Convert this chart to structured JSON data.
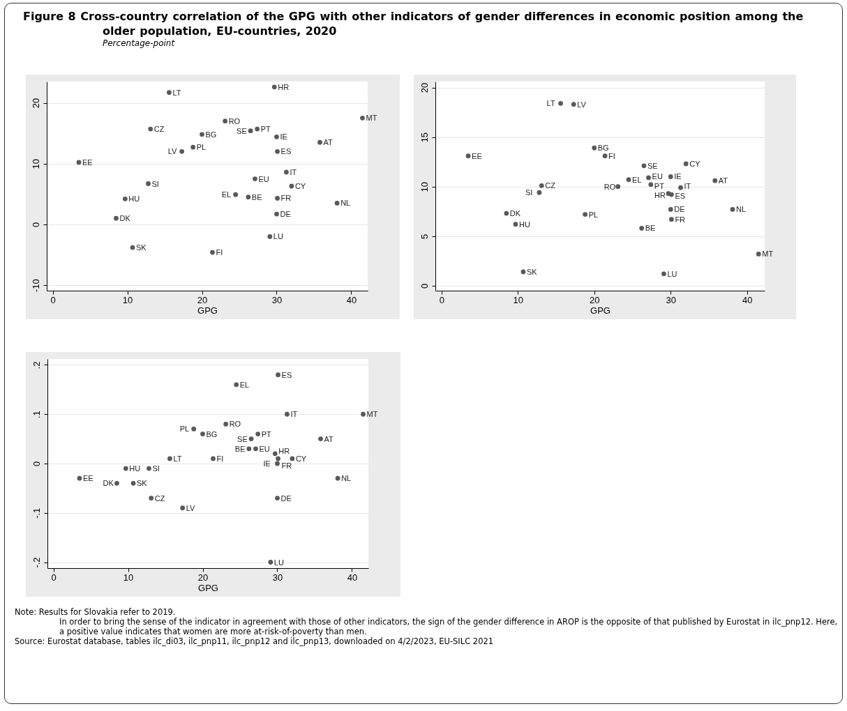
{
  "chart_data": [
    {
      "type": "scatter",
      "title": "Figure 8 Cross-country correlation of the GPG with other indicators of gender differences in economic position among the older population, EU-countries, 2020",
      "subtitle": "Percentage-point",
      "xlabel": "GPG",
      "xlim": [
        -0.8,
        42.2
      ],
      "ylim": [
        -10.9,
        23.5
      ],
      "xticks": [
        0,
        10,
        20,
        30,
        40
      ],
      "yticks": [
        -10,
        0,
        10,
        20
      ],
      "grid": "y",
      "marker": "circle",
      "series": [
        {
          "name": "EE",
          "color": "#595959",
          "x": [
            3.5
          ],
          "values": [
            10.2
          ]
        },
        {
          "name": "DK",
          "color": "#595959",
          "x": [
            8.5
          ],
          "values": [
            1.0
          ]
        },
        {
          "name": "HU",
          "color": "#595959",
          "x": [
            9.7
          ],
          "values": [
            4.2
          ]
        },
        {
          "name": "SK",
          "color": "#595959",
          "x": [
            10.7
          ],
          "values": [
            -3.8
          ]
        },
        {
          "name": "SI",
          "color": "#595959",
          "x": [
            12.8
          ],
          "values": [
            6.7
          ]
        },
        {
          "name": "CZ",
          "color": "#595959",
          "x": [
            13.1
          ],
          "values": [
            15.7
          ]
        },
        {
          "name": "LT",
          "color": "#595959",
          "x": [
            15.6
          ],
          "values": [
            21.7
          ]
        },
        {
          "name": "LV",
          "color": "#595959",
          "x": [
            17.3
          ],
          "values": [
            12.0
          ]
        },
        {
          "name": "PL",
          "color": "#595959",
          "x": [
            18.8
          ],
          "values": [
            12.7
          ]
        },
        {
          "name": "BG",
          "color": "#595959",
          "x": [
            20.0
          ],
          "values": [
            14.8
          ]
        },
        {
          "name": "FI",
          "color": "#595959",
          "x": [
            21.4
          ],
          "values": [
            -4.6
          ]
        },
        {
          "name": "RO",
          "color": "#595959",
          "x": [
            23.1
          ],
          "values": [
            17.0
          ]
        },
        {
          "name": "EL",
          "color": "#595959",
          "x": [
            24.5
          ],
          "values": [
            4.9
          ]
        },
        {
          "name": "BE",
          "color": "#595959",
          "x": [
            26.2
          ],
          "values": [
            4.5
          ]
        },
        {
          "name": "SE",
          "color": "#595959",
          "x": [
            26.5
          ],
          "values": [
            15.4
          ]
        },
        {
          "name": "EU",
          "color": "#595959",
          "x": [
            27.1
          ],
          "values": [
            7.5
          ]
        },
        {
          "name": "PT",
          "color": "#595959",
          "x": [
            27.4
          ],
          "values": [
            15.7
          ]
        },
        {
          "name": "LU",
          "color": "#595959",
          "x": [
            29.1
          ],
          "values": [
            -2.0
          ]
        },
        {
          "name": "HR",
          "color": "#595959",
          "x": [
            29.7
          ],
          "values": [
            22.6
          ]
        },
        {
          "name": "IE",
          "color": "#595959",
          "x": [
            30.0
          ],
          "values": [
            14.4
          ]
        },
        {
          "name": "DE",
          "color": "#595959",
          "x": [
            30.0
          ],
          "values": [
            1.7
          ]
        },
        {
          "name": "ES",
          "color": "#595959",
          "x": [
            30.1
          ],
          "values": [
            12.0
          ]
        },
        {
          "name": "FR",
          "color": "#595959",
          "x": [
            30.1
          ],
          "values": [
            4.3
          ]
        },
        {
          "name": "IT",
          "color": "#595959",
          "x": [
            31.3
          ],
          "values": [
            8.6
          ]
        },
        {
          "name": "CY",
          "color": "#595959",
          "x": [
            32.0
          ],
          "values": [
            6.3
          ]
        },
        {
          "name": "AT",
          "color": "#595959",
          "x": [
            35.8
          ],
          "values": [
            13.5
          ]
        },
        {
          "name": "NL",
          "color": "#595959",
          "x": [
            38.1
          ],
          "values": [
            3.5
          ]
        },
        {
          "name": "MT",
          "color": "#595959",
          "x": [
            41.5
          ],
          "values": [
            17.5
          ]
        }
      ]
    },
    {
      "type": "scatter",
      "xlabel": "GPG",
      "xlim": [
        -0.8,
        42.3
      ],
      "ylim": [
        -0.5,
        20.6
      ],
      "xticks": [
        0,
        10,
        20,
        30,
        40
      ],
      "yticks": [
        0,
        5,
        10,
        15,
        20
      ],
      "grid": "y",
      "marker": "circle",
      "series": [
        {
          "name": "EE",
          "color": "#595959",
          "x": [
            3.5
          ],
          "values": [
            13.1
          ]
        },
        {
          "name": "DK",
          "color": "#595959",
          "x": [
            8.5
          ],
          "values": [
            7.3
          ]
        },
        {
          "name": "HU",
          "color": "#595959",
          "x": [
            9.7
          ],
          "values": [
            6.2
          ]
        },
        {
          "name": "SK",
          "color": "#595959",
          "x": [
            10.7
          ],
          "values": [
            1.4
          ]
        },
        {
          "name": "SI",
          "color": "#595959",
          "x": [
            12.8
          ],
          "values": [
            9.4
          ]
        },
        {
          "name": "CZ",
          "color": "#595959",
          "x": [
            13.1
          ],
          "values": [
            10.1
          ]
        },
        {
          "name": "LT",
          "color": "#595959",
          "x": [
            15.6
          ],
          "values": [
            18.4
          ]
        },
        {
          "name": "LV",
          "color": "#595959",
          "x": [
            17.3
          ],
          "values": [
            18.3
          ]
        },
        {
          "name": "PL",
          "color": "#595959",
          "x": [
            18.8
          ],
          "values": [
            7.2
          ]
        },
        {
          "name": "BG",
          "color": "#595959",
          "x": [
            20.0
          ],
          "values": [
            13.9
          ]
        },
        {
          "name": "FI",
          "color": "#595959",
          "x": [
            21.4
          ],
          "values": [
            13.1
          ]
        },
        {
          "name": "RO",
          "color": "#595959",
          "x": [
            23.1
          ],
          "values": [
            10.0
          ]
        },
        {
          "name": "EL",
          "color": "#595959",
          "x": [
            24.5
          ],
          "values": [
            10.7
          ]
        },
        {
          "name": "BE",
          "color": "#595959",
          "x": [
            26.2
          ],
          "values": [
            5.8
          ]
        },
        {
          "name": "SE",
          "color": "#595959",
          "x": [
            26.5
          ],
          "values": [
            12.1
          ]
        },
        {
          "name": "EU",
          "color": "#595959",
          "x": [
            27.1
          ],
          "values": [
            10.9
          ]
        },
        {
          "name": "PT",
          "color": "#595959",
          "x": [
            27.4
          ],
          "values": [
            10.2
          ]
        },
        {
          "name": "LU",
          "color": "#595959",
          "x": [
            29.1
          ],
          "values": [
            1.2
          ]
        },
        {
          "name": "HR",
          "color": "#595959",
          "x": [
            29.7
          ],
          "values": [
            9.3
          ]
        },
        {
          "name": "IE",
          "color": "#595959",
          "x": [
            30.0
          ],
          "values": [
            11.0
          ]
        },
        {
          "name": "DE",
          "color": "#595959",
          "x": [
            30.0
          ],
          "values": [
            7.7
          ]
        },
        {
          "name": "ES",
          "color": "#595959",
          "x": [
            30.1
          ],
          "values": [
            9.2
          ]
        },
        {
          "name": "FR",
          "color": "#595959",
          "x": [
            30.1
          ],
          "values": [
            6.7
          ]
        },
        {
          "name": "IT",
          "color": "#595959",
          "x": [
            31.3
          ],
          "values": [
            9.9
          ]
        },
        {
          "name": "CY",
          "color": "#595959",
          "x": [
            32.0
          ],
          "values": [
            12.3
          ]
        },
        {
          "name": "AT",
          "color": "#595959",
          "x": [
            35.8
          ],
          "values": [
            10.6
          ]
        },
        {
          "name": "NL",
          "color": "#595959",
          "x": [
            38.1
          ],
          "values": [
            7.7
          ]
        },
        {
          "name": "MT",
          "color": "#595959",
          "x": [
            41.5
          ],
          "values": [
            3.2
          ]
        }
      ]
    },
    {
      "type": "scatter",
      "xlabel": "GPG",
      "xlim": [
        -0.8,
        42.2
      ],
      "ylim": [
        -0.212,
        0.212
      ],
      "xticks": [
        0,
        10,
        20,
        30,
        40
      ],
      "yticks": [
        {
          "value": -0.2,
          "label": "-.2"
        },
        {
          "value": -0.1,
          "label": "-.1"
        },
        0,
        {
          "value": 0.1,
          "label": ".1"
        },
        {
          "value": 0.2,
          "label": ".2"
        }
      ],
      "grid": "y",
      "marker": "circle",
      "annotations": [
        "Note: Results for Slovakia refer to 2019.",
        "In order to bring the sense of the indicator in agreement with those of other indicators, the sign of the gender difference in AROP is the opposite of that published by Eurostat in ilc_pnp12. Here, a positive value indicates that women are more at-risk-of-poverty than men.",
        "Source: Eurostat database, tables ilc_di03, ilc_pnp11, ilc_pnp12 and ilc_pnp13, downloaded on 4/2/2023, EU-SILC 2021"
      ],
      "series": [
        {
          "name": "EE",
          "color": "#595959",
          "x": [
            3.5
          ],
          "values": [
            -0.03
          ]
        },
        {
          "name": "DK",
          "color": "#595959",
          "x": [
            8.5
          ],
          "values": [
            -0.04
          ]
        },
        {
          "name": "HU",
          "color": "#595959",
          "x": [
            9.7
          ],
          "values": [
            -0.01
          ]
        },
        {
          "name": "SK",
          "color": "#595959",
          "x": [
            10.7
          ],
          "values": [
            -0.04
          ]
        },
        {
          "name": "SI",
          "color": "#595959",
          "x": [
            12.8
          ],
          "values": [
            -0.01
          ]
        },
        {
          "name": "CZ",
          "color": "#595959",
          "x": [
            13.1
          ],
          "values": [
            -0.07
          ]
        },
        {
          "name": "LT",
          "color": "#595959",
          "x": [
            15.6
          ],
          "values": [
            0.01
          ]
        },
        {
          "name": "LV",
          "color": "#595959",
          "x": [
            17.3
          ],
          "values": [
            -0.09
          ]
        },
        {
          "name": "PL",
          "color": "#595959",
          "x": [
            18.8
          ],
          "values": [
            0.07
          ]
        },
        {
          "name": "BG",
          "color": "#595959",
          "x": [
            20.0
          ],
          "values": [
            0.06
          ]
        },
        {
          "name": "FI",
          "color": "#595959",
          "x": [
            21.4
          ],
          "values": [
            0.01
          ]
        },
        {
          "name": "RO",
          "color": "#595959",
          "x": [
            23.1
          ],
          "values": [
            0.08
          ]
        },
        {
          "name": "EL",
          "color": "#595959",
          "x": [
            24.5
          ],
          "values": [
            0.16
          ]
        },
        {
          "name": "BE",
          "color": "#595959",
          "x": [
            26.2
          ],
          "values": [
            0.03
          ]
        },
        {
          "name": "SE",
          "color": "#595959",
          "x": [
            26.5
          ],
          "values": [
            0.05
          ]
        },
        {
          "name": "EU",
          "color": "#595959",
          "x": [
            27.1
          ],
          "values": [
            0.03
          ]
        },
        {
          "name": "PT",
          "color": "#595959",
          "x": [
            27.4
          ],
          "values": [
            0.06
          ]
        },
        {
          "name": "LU",
          "color": "#595959",
          "x": [
            29.1
          ],
          "values": [
            -0.2
          ]
        },
        {
          "name": "HR",
          "color": "#595959",
          "x": [
            29.7
          ],
          "values": [
            0.02
          ]
        },
        {
          "name": "IE",
          "color": "#595959",
          "x": [
            30.0
          ],
          "values": [
            0
          ]
        },
        {
          "name": "DE",
          "color": "#595959",
          "x": [
            30.0
          ],
          "values": [
            -0.07
          ]
        },
        {
          "name": "ES",
          "color": "#595959",
          "x": [
            30.1
          ],
          "values": [
            0.18
          ]
        },
        {
          "name": "FR",
          "color": "#595959",
          "x": [
            30.1
          ],
          "values": [
            0.01
          ]
        },
        {
          "name": "IT",
          "color": "#595959",
          "x": [
            31.3
          ],
          "values": [
            0.1
          ]
        },
        {
          "name": "CY",
          "color": "#595959",
          "x": [
            32.0
          ],
          "values": [
            0.01
          ]
        },
        {
          "name": "AT",
          "color": "#595959",
          "x": [
            35.8
          ],
          "values": [
            0.05
          ]
        },
        {
          "name": "NL",
          "color": "#595959",
          "x": [
            38.1
          ],
          "values": [
            -0.03
          ]
        },
        {
          "name": "MT",
          "color": "#595959",
          "x": [
            41.5
          ],
          "values": [
            0.1
          ]
        }
      ]
    }
  ]
}
